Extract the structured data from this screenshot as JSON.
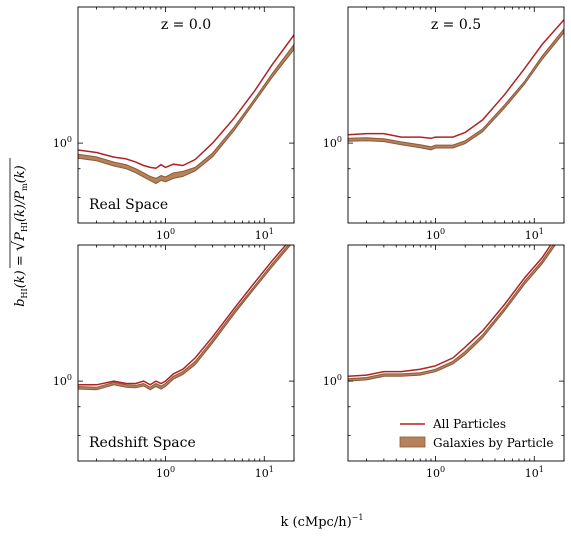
{
  "figure": {
    "xlabel": "k (cMpc/h)",
    "xlabel_sup": "−1",
    "ylabel_parts": {
      "b": "b",
      "b_sub": "HI",
      "mid": "(k) = ",
      "p1": "P",
      "p1_sub": "HI",
      "p1_arg": "(k)/",
      "p2": "P",
      "p2_sub": "m",
      "p2_arg": "(k)"
    },
    "legend": [
      {
        "label": "All Particles",
        "kind": "line",
        "color": "#b22222"
      },
      {
        "label": "Galaxies by Particle",
        "kind": "patch",
        "color": "#b5825a",
        "edge": "#8b5a3c"
      }
    ],
    "colors": {
      "all_particles": "#b22222",
      "galaxies_band": "#b5825a",
      "galaxies_edge": "#8b5a3c"
    },
    "tick_base": "10",
    "x_ticks": [
      {
        "value": 1,
        "exp": "0"
      },
      {
        "value": 10,
        "exp": "1"
      }
    ],
    "y_ticks": [
      {
        "value": 1,
        "exp": "0"
      }
    ]
  },
  "chart_data": [
    {
      "type": "line",
      "panel": "top-left",
      "title": "z = 0.0",
      "annotation": "Real Space",
      "xscale": "log",
      "yscale": "log",
      "xlim": [
        0.13,
        20
      ],
      "ylim": [
        0.72,
        1.75
      ],
      "grid": false,
      "series": [
        {
          "name": "All Particles",
          "x": [
            0.13,
            0.2,
            0.3,
            0.4,
            0.5,
            0.6,
            0.7,
            0.8,
            0.9,
            1.0,
            1.2,
            1.5,
            2,
            3,
            5,
            8,
            12,
            20
          ],
          "y": [
            0.972,
            0.962,
            0.944,
            0.937,
            0.925,
            0.912,
            0.905,
            0.902,
            0.915,
            0.905,
            0.917,
            0.912,
            0.935,
            1.0,
            1.11,
            1.24,
            1.38,
            1.56
          ]
        },
        {
          "name": "Galaxies by Particle",
          "x": [
            0.13,
            0.2,
            0.3,
            0.4,
            0.5,
            0.6,
            0.7,
            0.8,
            0.9,
            1.0,
            1.2,
            1.5,
            2,
            3,
            5,
            8,
            12,
            20
          ],
          "y_upper": [
            0.955,
            0.945,
            0.925,
            0.915,
            0.9,
            0.885,
            0.872,
            0.865,
            0.875,
            0.87,
            0.885,
            0.89,
            0.905,
            0.96,
            1.07,
            1.2,
            1.33,
            1.5
          ],
          "y_lower": [
            0.94,
            0.93,
            0.91,
            0.9,
            0.885,
            0.87,
            0.857,
            0.847,
            0.858,
            0.853,
            0.865,
            0.872,
            0.892,
            0.945,
            1.055,
            1.185,
            1.31,
            1.47
          ]
        }
      ]
    },
    {
      "type": "line",
      "panel": "top-right",
      "title": "z = 0.5",
      "annotation": "",
      "xscale": "log",
      "yscale": "log",
      "xlim": [
        0.13,
        20
      ],
      "ylim": [
        0.72,
        1.75
      ],
      "grid": false,
      "series": [
        {
          "name": "All Particles",
          "x": [
            0.13,
            0.2,
            0.3,
            0.45,
            0.7,
            0.9,
            1.0,
            1.5,
            2,
            3,
            5,
            8,
            12,
            20
          ],
          "y": [
            1.035,
            1.04,
            1.04,
            1.025,
            1.025,
            1.02,
            1.025,
            1.025,
            1.045,
            1.1,
            1.22,
            1.36,
            1.5,
            1.66
          ]
        },
        {
          "name": "Galaxies by Particle",
          "x": [
            0.13,
            0.2,
            0.3,
            0.45,
            0.7,
            0.9,
            1.0,
            1.5,
            2,
            3,
            5,
            8,
            12,
            20
          ],
          "y_upper": [
            1.02,
            1.022,
            1.018,
            1.005,
            0.993,
            0.985,
            0.992,
            0.992,
            1.01,
            1.06,
            1.17,
            1.29,
            1.43,
            1.6
          ],
          "y_lower": [
            1.008,
            1.01,
            1.006,
            0.993,
            0.981,
            0.973,
            0.98,
            0.98,
            0.998,
            1.048,
            1.155,
            1.275,
            1.41,
            1.575
          ]
        }
      ]
    },
    {
      "type": "line",
      "panel": "bottom-left",
      "title": "",
      "annotation": "Redshift Space",
      "xscale": "log",
      "yscale": "log",
      "xlim": [
        0.13,
        20
      ],
      "ylim": [
        0.72,
        1.75
      ],
      "grid": false,
      "series": [
        {
          "name": "All Particles",
          "x": [
            0.13,
            0.2,
            0.3,
            0.4,
            0.5,
            0.6,
            0.7,
            0.8,
            0.9,
            1.0,
            1.2,
            1.5,
            2,
            3,
            5,
            8,
            12,
            20
          ],
          "y": [
            0.985,
            0.985,
            1.0,
            0.99,
            0.99,
            1.0,
            0.985,
            1.0,
            0.99,
            1.0,
            1.03,
            1.05,
            1.1,
            1.2,
            1.35,
            1.5,
            1.64,
            1.82
          ]
        },
        {
          "name": "Galaxies by Particle",
          "x": [
            0.13,
            0.2,
            0.3,
            0.4,
            0.5,
            0.6,
            0.7,
            0.8,
            0.9,
            1.0,
            1.2,
            1.5,
            2,
            3,
            5,
            8,
            12,
            20
          ],
          "y_upper": [
            0.978,
            0.975,
            0.995,
            0.985,
            0.983,
            0.99,
            0.975,
            0.99,
            0.98,
            0.99,
            1.02,
            1.04,
            1.085,
            1.185,
            1.335,
            1.48,
            1.62,
            1.8
          ],
          "y_lower": [
            0.968,
            0.965,
            0.985,
            0.975,
            0.973,
            0.98,
            0.965,
            0.978,
            0.968,
            0.978,
            1.008,
            1.028,
            1.07,
            1.17,
            1.32,
            1.465,
            1.6,
            1.78
          ]
        }
      ]
    },
    {
      "type": "line",
      "panel": "bottom-right",
      "title": "",
      "annotation": "",
      "xscale": "log",
      "yscale": "log",
      "xlim": [
        0.13,
        20
      ],
      "ylim": [
        0.72,
        1.75
      ],
      "grid": false,
      "series": [
        {
          "name": "All Particles",
          "x": [
            0.13,
            0.2,
            0.3,
            0.45,
            0.7,
            0.9,
            1.0,
            1.5,
            2,
            3,
            5,
            8,
            12,
            20
          ],
          "y": [
            1.02,
            1.025,
            1.04,
            1.04,
            1.05,
            1.06,
            1.065,
            1.1,
            1.15,
            1.23,
            1.37,
            1.53,
            1.66,
            1.9
          ]
        },
        {
          "name": "Galaxies by Particle",
          "x": [
            0.13,
            0.2,
            0.3,
            0.45,
            0.7,
            0.9,
            1.0,
            1.5,
            2,
            3,
            5,
            8,
            12,
            20
          ],
          "y_upper": [
            1.01,
            1.015,
            1.03,
            1.03,
            1.035,
            1.045,
            1.05,
            1.085,
            1.13,
            1.21,
            1.35,
            1.51,
            1.64,
            1.87
          ],
          "y_lower": [
            1.0,
            1.005,
            1.02,
            1.02,
            1.025,
            1.035,
            1.04,
            1.073,
            1.115,
            1.195,
            1.335,
            1.49,
            1.62,
            1.84
          ]
        }
      ]
    }
  ]
}
